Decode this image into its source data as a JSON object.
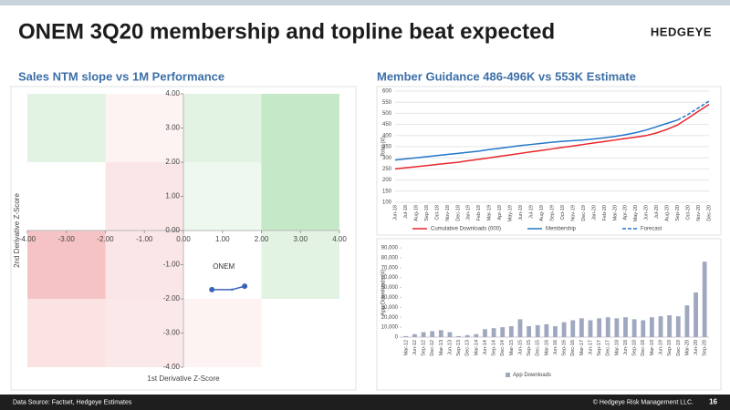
{
  "header": {
    "title": "ONEM 3Q20 membership and topline beat expected",
    "logo": "HEDGEYE"
  },
  "footer": {
    "source": "Data Source: Factset, Hedgeye Estimates",
    "copyright": "© Hedgeye Risk Management LLC.",
    "page": "16"
  },
  "chart_data": [
    {
      "type": "scatter",
      "title": "Sales NTM slope vs 1M Performance",
      "x_label": "1st Derivative Z-Score",
      "y_label": "2nd Derivative Z-Score",
      "xlim": [
        -4,
        4
      ],
      "ylim": [
        -4,
        4
      ],
      "xticks": [
        {
          "value": -4,
          "label": "-4.00"
        },
        {
          "value": -3,
          "label": "-3.00"
        },
        {
          "value": -2,
          "label": "-2.00"
        },
        {
          "value": -1,
          "label": "-1.00"
        },
        {
          "value": 0,
          "label": "0.00"
        },
        {
          "value": 1,
          "label": "1.00"
        },
        {
          "value": 2,
          "label": "2.00"
        },
        {
          "value": 3,
          "label": "3.00"
        },
        {
          "value": 4,
          "label": "4.00"
        }
      ],
      "yticks": [
        {
          "value": -4,
          "label": "-4.00"
        },
        {
          "value": -3,
          "label": "-3.00"
        },
        {
          "value": -2,
          "label": "-2.00"
        },
        {
          "value": -1,
          "label": "-1.00"
        },
        {
          "value": 0,
          "label": "0.00"
        },
        {
          "value": 1,
          "label": "1.00"
        },
        {
          "value": 2,
          "label": "2.00"
        },
        {
          "value": 3,
          "label": "3.00"
        },
        {
          "value": 4,
          "label": "4.00"
        }
      ],
      "quadrant_colors": [
        [
          "#e3f3e3",
          "#fdf3f3",
          "#e3f3e3",
          "#c5e8c8"
        ],
        [
          "#ffffff",
          "#fbe6e7",
          "#eef8ee",
          "#c5e8c8"
        ],
        [
          "#f6c3c5",
          "#fbe6e7",
          "#ffffff",
          "#e3f3e3"
        ],
        [
          "#fbe2e3",
          "#fbe9ea",
          "#fdf3f3",
          "#ffffff"
        ]
      ],
      "series": [
        {
          "name": "ONEM",
          "color": "#3a63b8",
          "x": [
            0.73,
            1.25,
            1.57
          ],
          "y": [
            -1.73,
            -1.73,
            -1.63
          ]
        }
      ]
    },
    {
      "type": "line",
      "title": "Member Guidance 486-496K vs 553K Estimate",
      "y_label": "Total (#)",
      "categories": [
        "Jun-18",
        "Jul-18",
        "Aug-18",
        "Sep-18",
        "Oct-18",
        "Nov-18",
        "Dec-18",
        "Jan-19",
        "Feb-19",
        "Mar-19",
        "Apr-19",
        "May-19",
        "Jun-19",
        "Jul-19",
        "Aug-19",
        "Sep-19",
        "Oct-19",
        "Nov-19",
        "Dec-19",
        "Jan-20",
        "Feb-20",
        "Mar-20",
        "Apr-20",
        "May-20",
        "Jun-20",
        "Jul-20",
        "Aug-20",
        "Sep-20",
        "Oct-20",
        "Nov-20",
        "Dec-20"
      ],
      "ylim": [
        100,
        600
      ],
      "yticks": [
        100,
        150,
        200,
        250,
        300,
        350,
        400,
        450,
        500,
        550,
        600
      ],
      "grid": true,
      "series": [
        {
          "name": "Cumulative Downloads (000)",
          "color": "#e8262b",
          "line_style": "solid",
          "values": [
            250,
            255,
            260,
            265,
            270,
            275,
            280,
            287,
            293,
            300,
            307,
            313,
            320,
            327,
            333,
            340,
            347,
            353,
            360,
            367,
            373,
            380,
            387,
            393,
            400,
            412,
            428,
            448,
            478,
            510,
            540
          ]
        },
        {
          "name": "Membership",
          "color": "#2476c9",
          "line_style": "solid",
          "values": [
            290,
            295,
            300,
            305,
            310,
            315,
            320,
            325,
            330,
            337,
            343,
            349,
            355,
            360,
            365,
            370,
            374,
            377,
            380,
            385,
            390,
            396,
            404,
            413,
            425,
            440,
            455,
            470,
            null,
            null,
            null
          ]
        },
        {
          "name": "Forecast",
          "color": "#2476c9",
          "line_style": "dashed",
          "values": [
            null,
            null,
            null,
            null,
            null,
            null,
            null,
            null,
            null,
            null,
            null,
            null,
            null,
            null,
            null,
            null,
            null,
            null,
            null,
            null,
            null,
            null,
            null,
            null,
            null,
            null,
            null,
            470,
            495,
            525,
            555
          ]
        }
      ]
    },
    {
      "type": "bar",
      "y_label": "App Downloads (#)",
      "categories": [
        "Mar-12",
        "Jun-12",
        "Sep-12",
        "Dec-12",
        "Mar-13",
        "Jun-13",
        "Sep-13",
        "Dec-13",
        "Mar-14",
        "Jun-14",
        "Sep-14",
        "Dec-14",
        "Mar-15",
        "Jun-15",
        "Sep-15",
        "Dec-15",
        "Mar-16",
        "Jun-16",
        "Sep-16",
        "Dec-16",
        "Mar-17",
        "Jun-17",
        "Sep-17",
        "Dec-17",
        "Mar-18",
        "Jun-18",
        "Sep-18",
        "Dec-18",
        "Mar-19",
        "Jun-19",
        "Sep-19",
        "Dec-19",
        "Mar-20",
        "Jun-20",
        "Sep-20"
      ],
      "ylim": [
        0,
        90000
      ],
      "yticks": [
        0,
        {
          "value": 10000,
          "label": "10,000"
        },
        {
          "value": 20000,
          "label": "20,000"
        },
        {
          "value": 30000,
          "label": "30,000"
        },
        {
          "value": 40000,
          "label": "40,000"
        },
        {
          "value": 50000,
          "label": "50,000"
        },
        {
          "value": 60000,
          "label": "60,000"
        },
        {
          "value": 70000,
          "label": "70,000"
        },
        {
          "value": 80000,
          "label": "80,000"
        },
        {
          "value": 90000,
          "label": "90,000"
        }
      ],
      "series": [
        {
          "name": "App Downloads",
          "color": "#9fa8bf",
          "values": [
            1000,
            3000,
            5000,
            6000,
            7000,
            5000,
            1000,
            2000,
            3000,
            8000,
            9000,
            10000,
            11000,
            18000,
            11000,
            12000,
            13000,
            11000,
            15000,
            17000,
            19000,
            17000,
            19000,
            20000,
            19000,
            20000,
            18000,
            17000,
            20000,
            21000,
            22000,
            21000,
            32000,
            45000,
            76000
          ]
        }
      ]
    }
  ]
}
